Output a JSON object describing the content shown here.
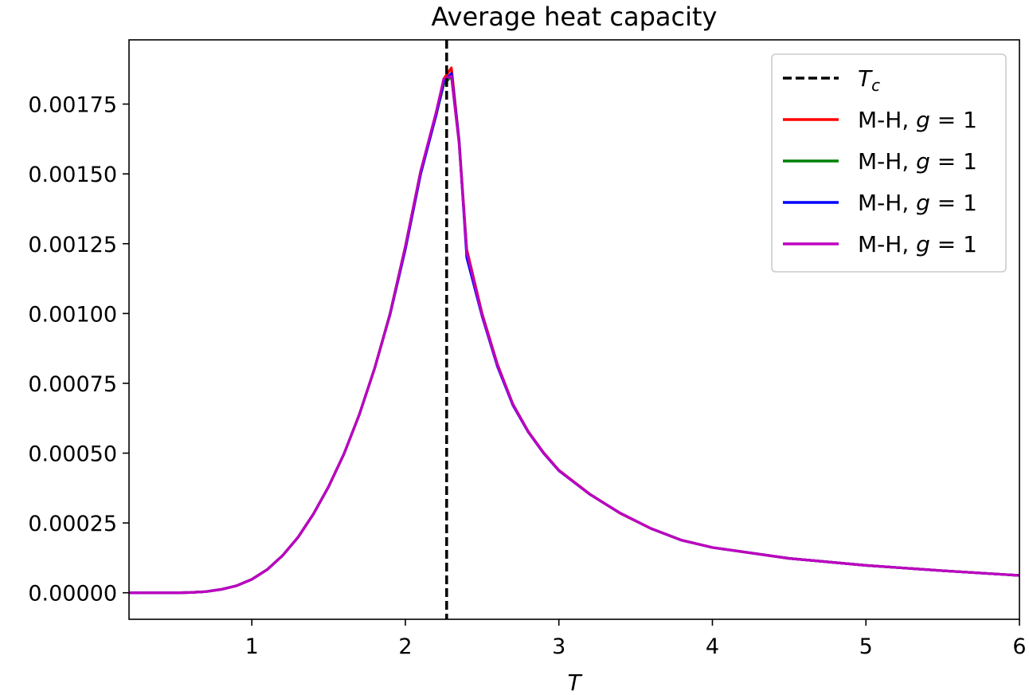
{
  "chart_data": {
    "type": "line",
    "title": "Average heat capacity",
    "xlabel": "T",
    "ylabel": "",
    "xlim": [
      0.2,
      6.0
    ],
    "ylim": [
      -9.5e-05,
      0.00198
    ],
    "xticks": [
      1,
      2,
      3,
      4,
      5,
      6
    ],
    "xtick_labels": [
      "1",
      "2",
      "3",
      "4",
      "5",
      "6"
    ],
    "yticks": [
      0.0,
      0.00025,
      0.0005,
      0.00075,
      0.001,
      0.00125,
      0.0015,
      0.00175
    ],
    "ytick_labels": [
      "0.00000",
      "0.00025",
      "0.00050",
      "0.00075",
      "0.00100",
      "0.00125",
      "0.00150",
      "0.00175"
    ],
    "grid": false,
    "legend_position": "top-right",
    "vline": {
      "name": "T_c",
      "label_main": "T",
      "label_sub": "c",
      "x": 2.269,
      "color": "#000000",
      "style": "dashed"
    },
    "x": [
      0.2,
      0.3,
      0.4,
      0.5,
      0.6,
      0.7,
      0.8,
      0.9,
      1.0,
      1.1,
      1.2,
      1.3,
      1.4,
      1.5,
      1.6,
      1.7,
      1.8,
      1.9,
      2.0,
      2.1,
      2.2,
      2.25,
      2.3,
      2.35,
      2.4,
      2.5,
      2.6,
      2.7,
      2.8,
      2.9,
      3.0,
      3.2,
      3.4,
      3.6,
      3.8,
      4.0,
      4.5,
      5.0,
      5.5,
      6.0
    ],
    "series": [
      {
        "name": "M-H, g = 1",
        "label_prefix": "M-H, ",
        "label_var": "g",
        "label_rest": " = 1",
        "color": "#ff0000",
        "values": [
          0.0,
          0.0,
          0.0,
          0.0,
          1e-06,
          4e-06,
          1.2e-05,
          2.5e-05,
          4.8e-05,
          8.3e-05,
          0.000133,
          0.000198,
          0.000281,
          0.00038,
          0.000497,
          0.000638,
          0.000804,
          0.000998,
          0.00124,
          0.00151,
          0.00171,
          0.00184,
          0.00188,
          0.00162,
          0.00123,
          0.001,
          0.000818,
          0.000676,
          0.000578,
          0.000502,
          0.000439,
          0.000354,
          0.000284,
          0.00023,
          0.000188,
          0.000162,
          0.000123,
          9.8e-05,
          7.9e-05,
          6.2e-05
        ]
      },
      {
        "name": "M-H, g = 1",
        "label_prefix": "M-H, ",
        "label_var": "g",
        "label_rest": " = 1",
        "color": "#008000",
        "values": [
          0.0,
          0.0,
          0.0,
          0.0,
          1e-06,
          4e-06,
          1.2e-05,
          2.5e-05,
          4.8e-05,
          8.3e-05,
          0.000133,
          0.000198,
          0.000281,
          0.00038,
          0.000497,
          0.000638,
          0.000804,
          0.001,
          0.00124,
          0.00151,
          0.00171,
          0.00182,
          0.00185,
          0.00161,
          0.00122,
          0.000995,
          0.000815,
          0.000675,
          0.000577,
          0.000501,
          0.000438,
          0.000353,
          0.000285,
          0.00023,
          0.000188,
          0.000162,
          0.000123,
          9.8e-05,
          7.9e-05,
          6.2e-05
        ]
      },
      {
        "name": "M-H, g = 1",
        "label_prefix": "M-H, ",
        "label_var": "g",
        "label_rest": " = 1",
        "color": "#0000ff",
        "values": [
          0.0,
          0.0,
          0.0,
          0.0,
          1e-06,
          4e-06,
          1.2e-05,
          2.5e-05,
          4.8e-05,
          8.3e-05,
          0.000133,
          0.000198,
          0.000281,
          0.00038,
          0.000497,
          0.000638,
          0.000804,
          0.000995,
          0.00123,
          0.0015,
          0.00171,
          0.00183,
          0.00186,
          0.00162,
          0.0012,
          0.00099,
          0.00081,
          0.000672,
          0.000576,
          0.0005,
          0.000437,
          0.000353,
          0.000285,
          0.00023,
          0.000188,
          0.000162,
          0.000123,
          9.8e-05,
          7.9e-05,
          6.2e-05
        ]
      },
      {
        "name": "M-H, g = 1",
        "label_prefix": "M-H, ",
        "label_var": "g",
        "label_rest": " = 1",
        "color": "#bf00bf",
        "values": [
          0.0,
          0.0,
          0.0,
          0.0,
          1e-06,
          4e-06,
          1.2e-05,
          2.5e-05,
          4.8e-05,
          8.3e-05,
          0.000133,
          0.000198,
          0.000281,
          0.00038,
          0.000497,
          0.000638,
          0.000804,
          0.000998,
          0.00124,
          0.00151,
          0.00172,
          0.00184,
          0.00185,
          0.00161,
          0.00122,
          0.000995,
          0.000815,
          0.000675,
          0.000577,
          0.000501,
          0.000438,
          0.000353,
          0.000285,
          0.00023,
          0.000188,
          0.000162,
          0.000123,
          9.8e-05,
          7.9e-05,
          6.2e-05
        ]
      }
    ]
  }
}
